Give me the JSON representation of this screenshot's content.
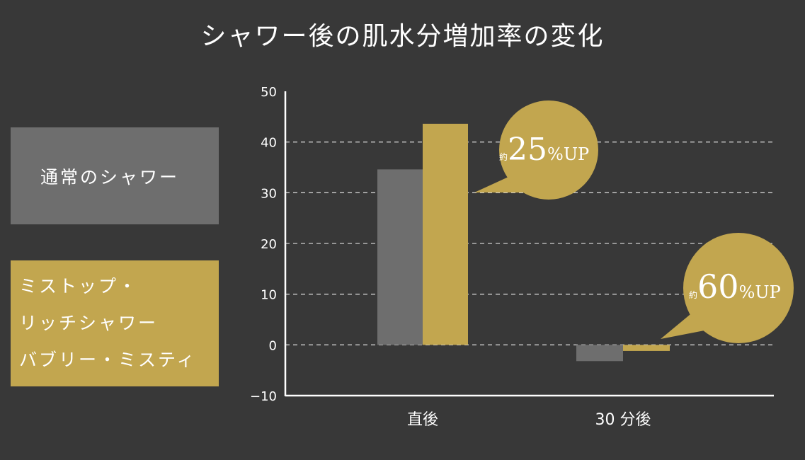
{
  "title": "シャワー後の肌水分増加率の変化",
  "legend": {
    "gray_label": "通常のシャワー",
    "gold_lines": [
      "ミストップ・",
      "リッチシャワー",
      "バブリー・ミスティ"
    ]
  },
  "colors": {
    "background": "#383838",
    "gray": "#6e6e6e",
    "gold": "#c2a64f"
  },
  "callouts": [
    {
      "prefix": "約",
      "number": "25",
      "suffix": "%UP"
    },
    {
      "prefix": "約",
      "number": "60",
      "suffix": "%UP"
    }
  ],
  "chart_data": {
    "type": "bar",
    "title": "シャワー後の肌水分増加率の変化",
    "categories": [
      "直後",
      "30 分後"
    ],
    "series": [
      {
        "name": "通常のシャワー",
        "color": "#6e6e6e",
        "values": [
          34.6,
          -3.2
        ]
      },
      {
        "name": "ミストップ・リッチシャワー バブリー・ミスティ",
        "color": "#c2a64f",
        "values": [
          43.6,
          -1.2
        ]
      }
    ],
    "yticks": [
      -10,
      0,
      10,
      20,
      30,
      40,
      50
    ],
    "ytick_labels": [
      "−10",
      "0",
      "10",
      "20",
      "30",
      "40",
      "50"
    ],
    "ylim": [
      -10,
      50
    ],
    "grid": "dashed horizontal",
    "legend_position": "left",
    "xlabel": "",
    "ylabel": ""
  }
}
